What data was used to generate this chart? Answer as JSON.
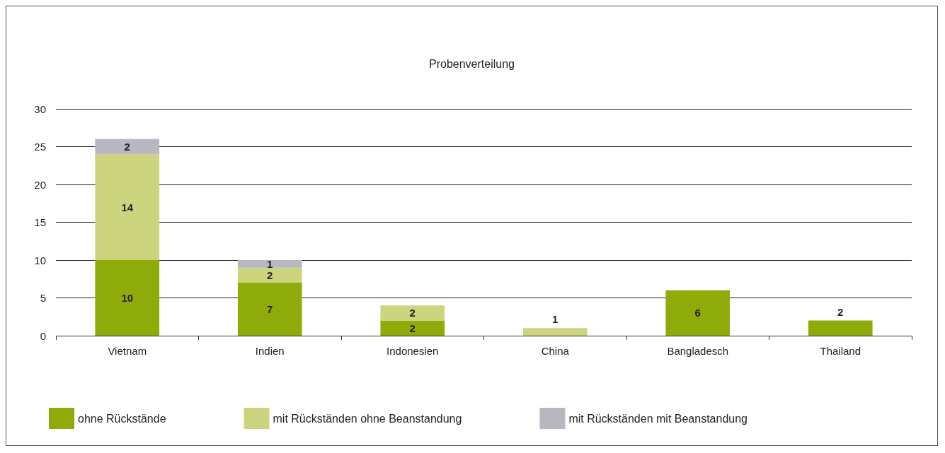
{
  "chart_data": {
    "type": "bar",
    "title": "Probenverteilung",
    "stacked": true,
    "categories": [
      "Vietnam",
      "Indien",
      "Indonesien",
      "China",
      "Bangladesch",
      "Thailand"
    ],
    "series": [
      {
        "name": "ohne Rückstände",
        "color": "#8fab0a",
        "values": [
          10,
          7,
          2,
          0,
          6,
          2
        ],
        "value_labels": [
          "10",
          "7",
          "2",
          null,
          "6",
          "2"
        ]
      },
      {
        "name": "mit Rückständen ohne Beanstandung",
        "color": "#ccd47e",
        "values": [
          14,
          2,
          2,
          1,
          0,
          0
        ],
        "value_labels": [
          "14",
          "2",
          "2",
          "1",
          null,
          null
        ]
      },
      {
        "name": "mit Rückständen mit Beanstandung",
        "color": "#b9b7c0",
        "values": [
          2,
          1,
          0,
          0,
          0,
          0
        ],
        "value_labels": [
          "2",
          "1",
          null,
          null,
          null,
          null
        ]
      }
    ],
    "ylim": [
      0,
      30
    ],
    "yticks": [
      0,
      5,
      10,
      15,
      20,
      25,
      30
    ],
    "grid": "y",
    "legend": "bottom"
  }
}
